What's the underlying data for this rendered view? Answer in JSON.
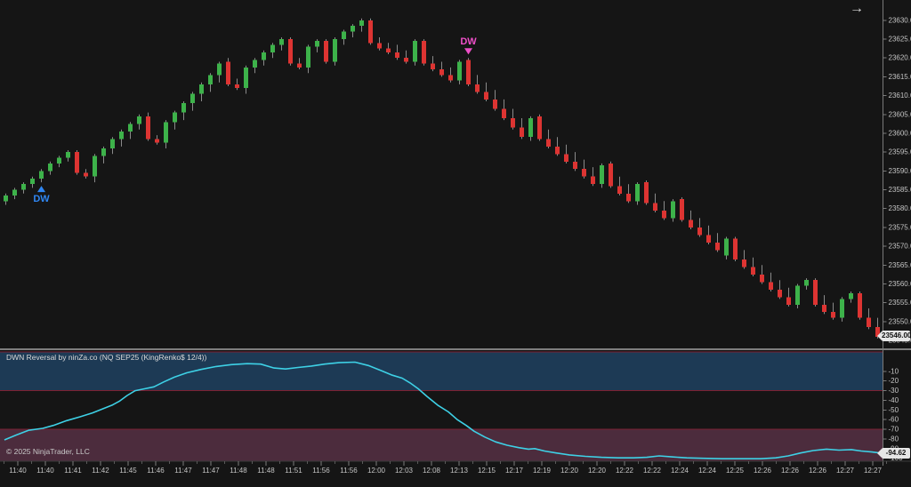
{
  "window": {
    "scroll_arrow": "→"
  },
  "status_bar": {
    "symbol": "NQ SEP25",
    "brand": "NINJATRADER"
  },
  "footer": {
    "copyright": "© 2025 NinjaTrader, LLC"
  },
  "colors": {
    "background": "#151515",
    "candle_up": "#3db24a",
    "candle_down": "#dd3432",
    "wick": "#8a8a8a",
    "axis": "#7a7a7a",
    "axis_text": "#c4c4c4",
    "zone_upper": "#1d3a55",
    "zone_lower": "#4c2c3d",
    "zone_line": "#7c2133",
    "indicator_line": "#3ed1e6",
    "marker_up": "#2f86f2",
    "marker_down": "#ee4fc8",
    "brand_red": "#e8401f"
  },
  "chart_data": {
    "type": "candlestick",
    "instrument": "NQ SEP25 (KingRenko$ 12/4)",
    "price_axis": {
      "ticks": [
        23630,
        23625,
        23620,
        23615,
        23610,
        23605,
        23600,
        23595,
        23590,
        23585,
        23580,
        23575,
        23570,
        23565,
        23560,
        23555,
        23550,
        23545
      ],
      "current": 23546.0,
      "current_label": "23546.00"
    },
    "time_axis": [
      "11:40",
      "11:40",
      "11:41",
      "11:42",
      "11:45",
      "11:46",
      "11:47",
      "11:47",
      "11:48",
      "11:48",
      "11:51",
      "11:56",
      "11:56",
      "12:00",
      "12:03",
      "12:08",
      "12:13",
      "12:15",
      "12:17",
      "12:19",
      "12:20",
      "12:20",
      "12:22",
      "12:22",
      "12:24",
      "12:24",
      "12:25",
      "12:26",
      "12:26",
      "12:26",
      "12:27",
      "12:27"
    ],
    "candles": [
      [
        23582,
        23583.5,
        23584,
        23581
      ],
      [
        23583.5,
        23585,
        23585.5,
        23582.5
      ],
      [
        23585,
        23586.5,
        23587,
        23584
      ],
      [
        23586.5,
        23588,
        23588.5,
        23585.5
      ],
      [
        23588,
        23590,
        23590.5,
        23587
      ],
      [
        23590,
        23592,
        23592.5,
        23589
      ],
      [
        23592,
        23593.5,
        23594,
        23591
      ],
      [
        23593.5,
        23595,
        23595.5,
        23592.5
      ],
      [
        23595,
        23589.5,
        23595.5,
        23589
      ],
      [
        23589.5,
        23588.5,
        23590.5,
        23588
      ],
      [
        23588.5,
        23594,
        23594.5,
        23587
      ],
      [
        23594,
        23596,
        23596.5,
        23592
      ],
      [
        23596,
        23598.5,
        23599,
        23594.5
      ],
      [
        23598.5,
        23600.5,
        23601,
        23596.5
      ],
      [
        23600.5,
        23602.5,
        23603,
        23598.5
      ],
      [
        23602.5,
        23604.5,
        23605,
        23601
      ],
      [
        23604.5,
        23598.5,
        23605.5,
        23598
      ],
      [
        23598.5,
        23597.5,
        23599.5,
        23597
      ],
      [
        23597.5,
        23603,
        23603.5,
        23596
      ],
      [
        23603,
        23605.5,
        23606,
        23601
      ],
      [
        23605.5,
        23608,
        23608.5,
        23603.5
      ],
      [
        23608,
        23610.5,
        23611,
        23606
      ],
      [
        23610.5,
        23613,
        23613.5,
        23608.5
      ],
      [
        23613,
        23615.5,
        23616,
        23611
      ],
      [
        23615.5,
        23618.5,
        23619,
        23613.5
      ],
      [
        23619,
        23613,
        23620,
        23612.5
      ],
      [
        23613,
        23612,
        23614.5,
        23611.5
      ],
      [
        23612,
        23617.5,
        23618,
        23610.5
      ],
      [
        23617.5,
        23619.5,
        23620,
        23616
      ],
      [
        23619.5,
        23621.5,
        23622,
        23618
      ],
      [
        23621.5,
        23623.5,
        23624,
        23620
      ],
      [
        23623.5,
        23625,
        23625.5,
        23622
      ],
      [
        23625,
        23618.5,
        23625.5,
        23618
      ],
      [
        23618.5,
        23617.5,
        23620,
        23617
      ],
      [
        23617.5,
        23623,
        23623.5,
        23616
      ],
      [
        23623,
        23624.5,
        23625,
        23621.5
      ],
      [
        23624.5,
        23619,
        23625,
        23618.5
      ],
      [
        23619,
        23625,
        23625.5,
        23618
      ],
      [
        23625,
        23627,
        23627.5,
        23623.5
      ],
      [
        23627,
        23628.5,
        23629,
        23625.5
      ],
      [
        23628.5,
        23630,
        23630.5,
        23627
      ],
      [
        23630,
        23624,
        23630.5,
        23623.5
      ],
      [
        23624,
        23622.5,
        23625.5,
        23622
      ],
      [
        23622.5,
        23621.5,
        23624,
        23621
      ],
      [
        23621.5,
        23620,
        23623.5,
        23619.5
      ],
      [
        23620,
        23619,
        23622,
        23618.5
      ],
      [
        23619,
        23624.5,
        23625,
        23618
      ],
      [
        23624.5,
        23618.5,
        23625,
        23618
      ],
      [
        23618.5,
        23617,
        23620.5,
        23616.5
      ],
      [
        23617,
        23615.5,
        23619,
        23615
      ],
      [
        23615.5,
        23614,
        23617.5,
        23613.5
      ],
      [
        23614,
        23619,
        23619.5,
        23613
      ],
      [
        23619.5,
        23613,
        23620,
        23612.5
      ],
      [
        23613,
        23611,
        23615.5,
        23610.5
      ],
      [
        23611,
        23609,
        23613.5,
        23608.5
      ],
      [
        23609,
        23606.5,
        23611.5,
        23606
      ],
      [
        23606.5,
        23604,
        23609,
        23603.5
      ],
      [
        23604,
        23601.5,
        23606.5,
        23601
      ],
      [
        23601.5,
        23599,
        23604,
        23598.5
      ],
      [
        23599,
        23604,
        23604.5,
        23598
      ],
      [
        23604.5,
        23598.5,
        23605,
        23598
      ],
      [
        23598.5,
        23596.5,
        23601,
        23596
      ],
      [
        23596.5,
        23594.5,
        23599,
        23594
      ],
      [
        23594.5,
        23592.5,
        23597,
        23592
      ],
      [
        23592.5,
        23590.5,
        23595,
        23590
      ],
      [
        23590.5,
        23588.5,
        23593,
        23588
      ],
      [
        23588.5,
        23586.5,
        23591,
        23586
      ],
      [
        23586.5,
        23591.5,
        23592,
        23585.5
      ],
      [
        23592,
        23586,
        23592.5,
        23585.5
      ],
      [
        23586,
        23584,
        23588.5,
        23583.5
      ],
      [
        23584,
        23582,
        23586.5,
        23581.5
      ],
      [
        23582,
        23586.5,
        23587,
        23581
      ],
      [
        23587,
        23581.5,
        23587.5,
        23581
      ],
      [
        23581.5,
        23579.5,
        23584,
        23579
      ],
      [
        23579.5,
        23577.5,
        23582,
        23577
      ],
      [
        23577.5,
        23582,
        23582.5,
        23576.5
      ],
      [
        23582.5,
        23577,
        23583,
        23576.5
      ],
      [
        23577,
        23575,
        23579.5,
        23574.5
      ],
      [
        23575,
        23573,
        23577.5,
        23572.5
      ],
      [
        23573,
        23571,
        23575.5,
        23570.5
      ],
      [
        23571,
        23569,
        23573.5,
        23568.5
      ],
      [
        23567.5,
        23572,
        23572.5,
        23566.5
      ],
      [
        23572,
        23566.5,
        23572.5,
        23566
      ],
      [
        23566.5,
        23564.5,
        23569,
        23564
      ],
      [
        23564.5,
        23562.5,
        23567,
        23562
      ],
      [
        23562.5,
        23560.5,
        23565,
        23560
      ],
      [
        23560.5,
        23558.5,
        23563,
        23558
      ],
      [
        23558.5,
        23556.5,
        23561,
        23556
      ],
      [
        23556.5,
        23554.5,
        23559,
        23554
      ],
      [
        23554.5,
        23559.5,
        23560,
        23553.5
      ],
      [
        23559.5,
        23561,
        23561.5,
        23558.5
      ],
      [
        23561,
        23554.5,
        23561.5,
        23554
      ],
      [
        23554.5,
        23552.5,
        23557,
        23552
      ],
      [
        23552.5,
        23551,
        23555,
        23550.5
      ],
      [
        23551,
        23556,
        23556.5,
        23550
      ],
      [
        23556,
        23557.5,
        23558,
        23555
      ],
      [
        23557.5,
        23551,
        23558,
        23550.5
      ],
      [
        23551,
        23548.5,
        23553.5,
        23548
      ],
      [
        23548.5,
        23546,
        23551,
        23545.5
      ]
    ],
    "markers": [
      {
        "shape": "triangle-up",
        "label": "DW",
        "candle_index": 4,
        "color": "#2f86f2"
      },
      {
        "shape": "triangle-down",
        "label": "DW",
        "candle_index": 52,
        "color": "#ee4fc8"
      }
    ],
    "indicator": {
      "type": "line",
      "label": "DWN Reversal by ninZa.co (NQ SEP25 (KingRenko$ 12/4))",
      "axis_ticks": [
        -10,
        -20,
        -30,
        -40,
        -50,
        -60,
        -70,
        -80,
        -90,
        -100
      ],
      "current_value": -94.62,
      "current_label": "-94.62",
      "zones": [
        {
          "from": 10,
          "to": -30,
          "color": "#1d3a55"
        },
        {
          "from": -70,
          "to": -110,
          "color": "#4c2c3d"
        }
      ],
      "line": [
        [
          5,
          -81
        ],
        [
          18,
          -76
        ],
        [
          32,
          -71
        ],
        [
          48,
          -69
        ],
        [
          60,
          -66
        ],
        [
          75,
          -61
        ],
        [
          90,
          -57
        ],
        [
          104,
          -53
        ],
        [
          115,
          -49
        ],
        [
          126,
          -45
        ],
        [
          134,
          -41
        ],
        [
          143,
          -35
        ],
        [
          152,
          -30
        ],
        [
          163,
          -28
        ],
        [
          173,
          -26
        ],
        [
          184,
          -21
        ],
        [
          196,
          -16
        ],
        [
          210,
          -11.5
        ],
        [
          226,
          -8
        ],
        [
          243,
          -5
        ],
        [
          260,
          -3
        ],
        [
          278,
          -2
        ],
        [
          293,
          -2.5
        ],
        [
          308,
          -6.5
        ],
        [
          321,
          -7.5
        ],
        [
          335,
          -6
        ],
        [
          350,
          -4.5
        ],
        [
          365,
          -2.5
        ],
        [
          381,
          -1
        ],
        [
          399,
          -0.5
        ],
        [
          414,
          -4
        ],
        [
          429,
          -9.5
        ],
        [
          441,
          -14
        ],
        [
          452,
          -17
        ],
        [
          461,
          -22
        ],
        [
          470,
          -28
        ],
        [
          480,
          -36
        ],
        [
          492,
          -45
        ],
        [
          504,
          -52
        ],
        [
          514,
          -60
        ],
        [
          524,
          -66
        ],
        [
          533,
          -72
        ],
        [
          545,
          -78
        ],
        [
          557,
          -83
        ],
        [
          570,
          -86.5
        ],
        [
          583,
          -89
        ],
        [
          594,
          -90.5
        ],
        [
          601,
          -90
        ],
        [
          612,
          -92.5
        ],
        [
          625,
          -94.5
        ],
        [
          640,
          -96.5
        ],
        [
          658,
          -98
        ],
        [
          676,
          -99
        ],
        [
          695,
          -99.5
        ],
        [
          712,
          -99.5
        ],
        [
          727,
          -99
        ],
        [
          741,
          -97.5
        ],
        [
          755,
          -98.5
        ],
        [
          772,
          -99.5
        ],
        [
          790,
          -100
        ],
        [
          812,
          -100.5
        ],
        [
          835,
          -100.5
        ],
        [
          855,
          -100.5
        ],
        [
          872,
          -99.5
        ],
        [
          886,
          -97.5
        ],
        [
          900,
          -94.5
        ],
        [
          914,
          -92
        ],
        [
          929,
          -90.5
        ],
        [
          943,
          -91.5
        ],
        [
          957,
          -91
        ],
        [
          968,
          -92.5
        ],
        [
          980,
          -93.5
        ],
        [
          991,
          -94.62
        ]
      ]
    }
  }
}
